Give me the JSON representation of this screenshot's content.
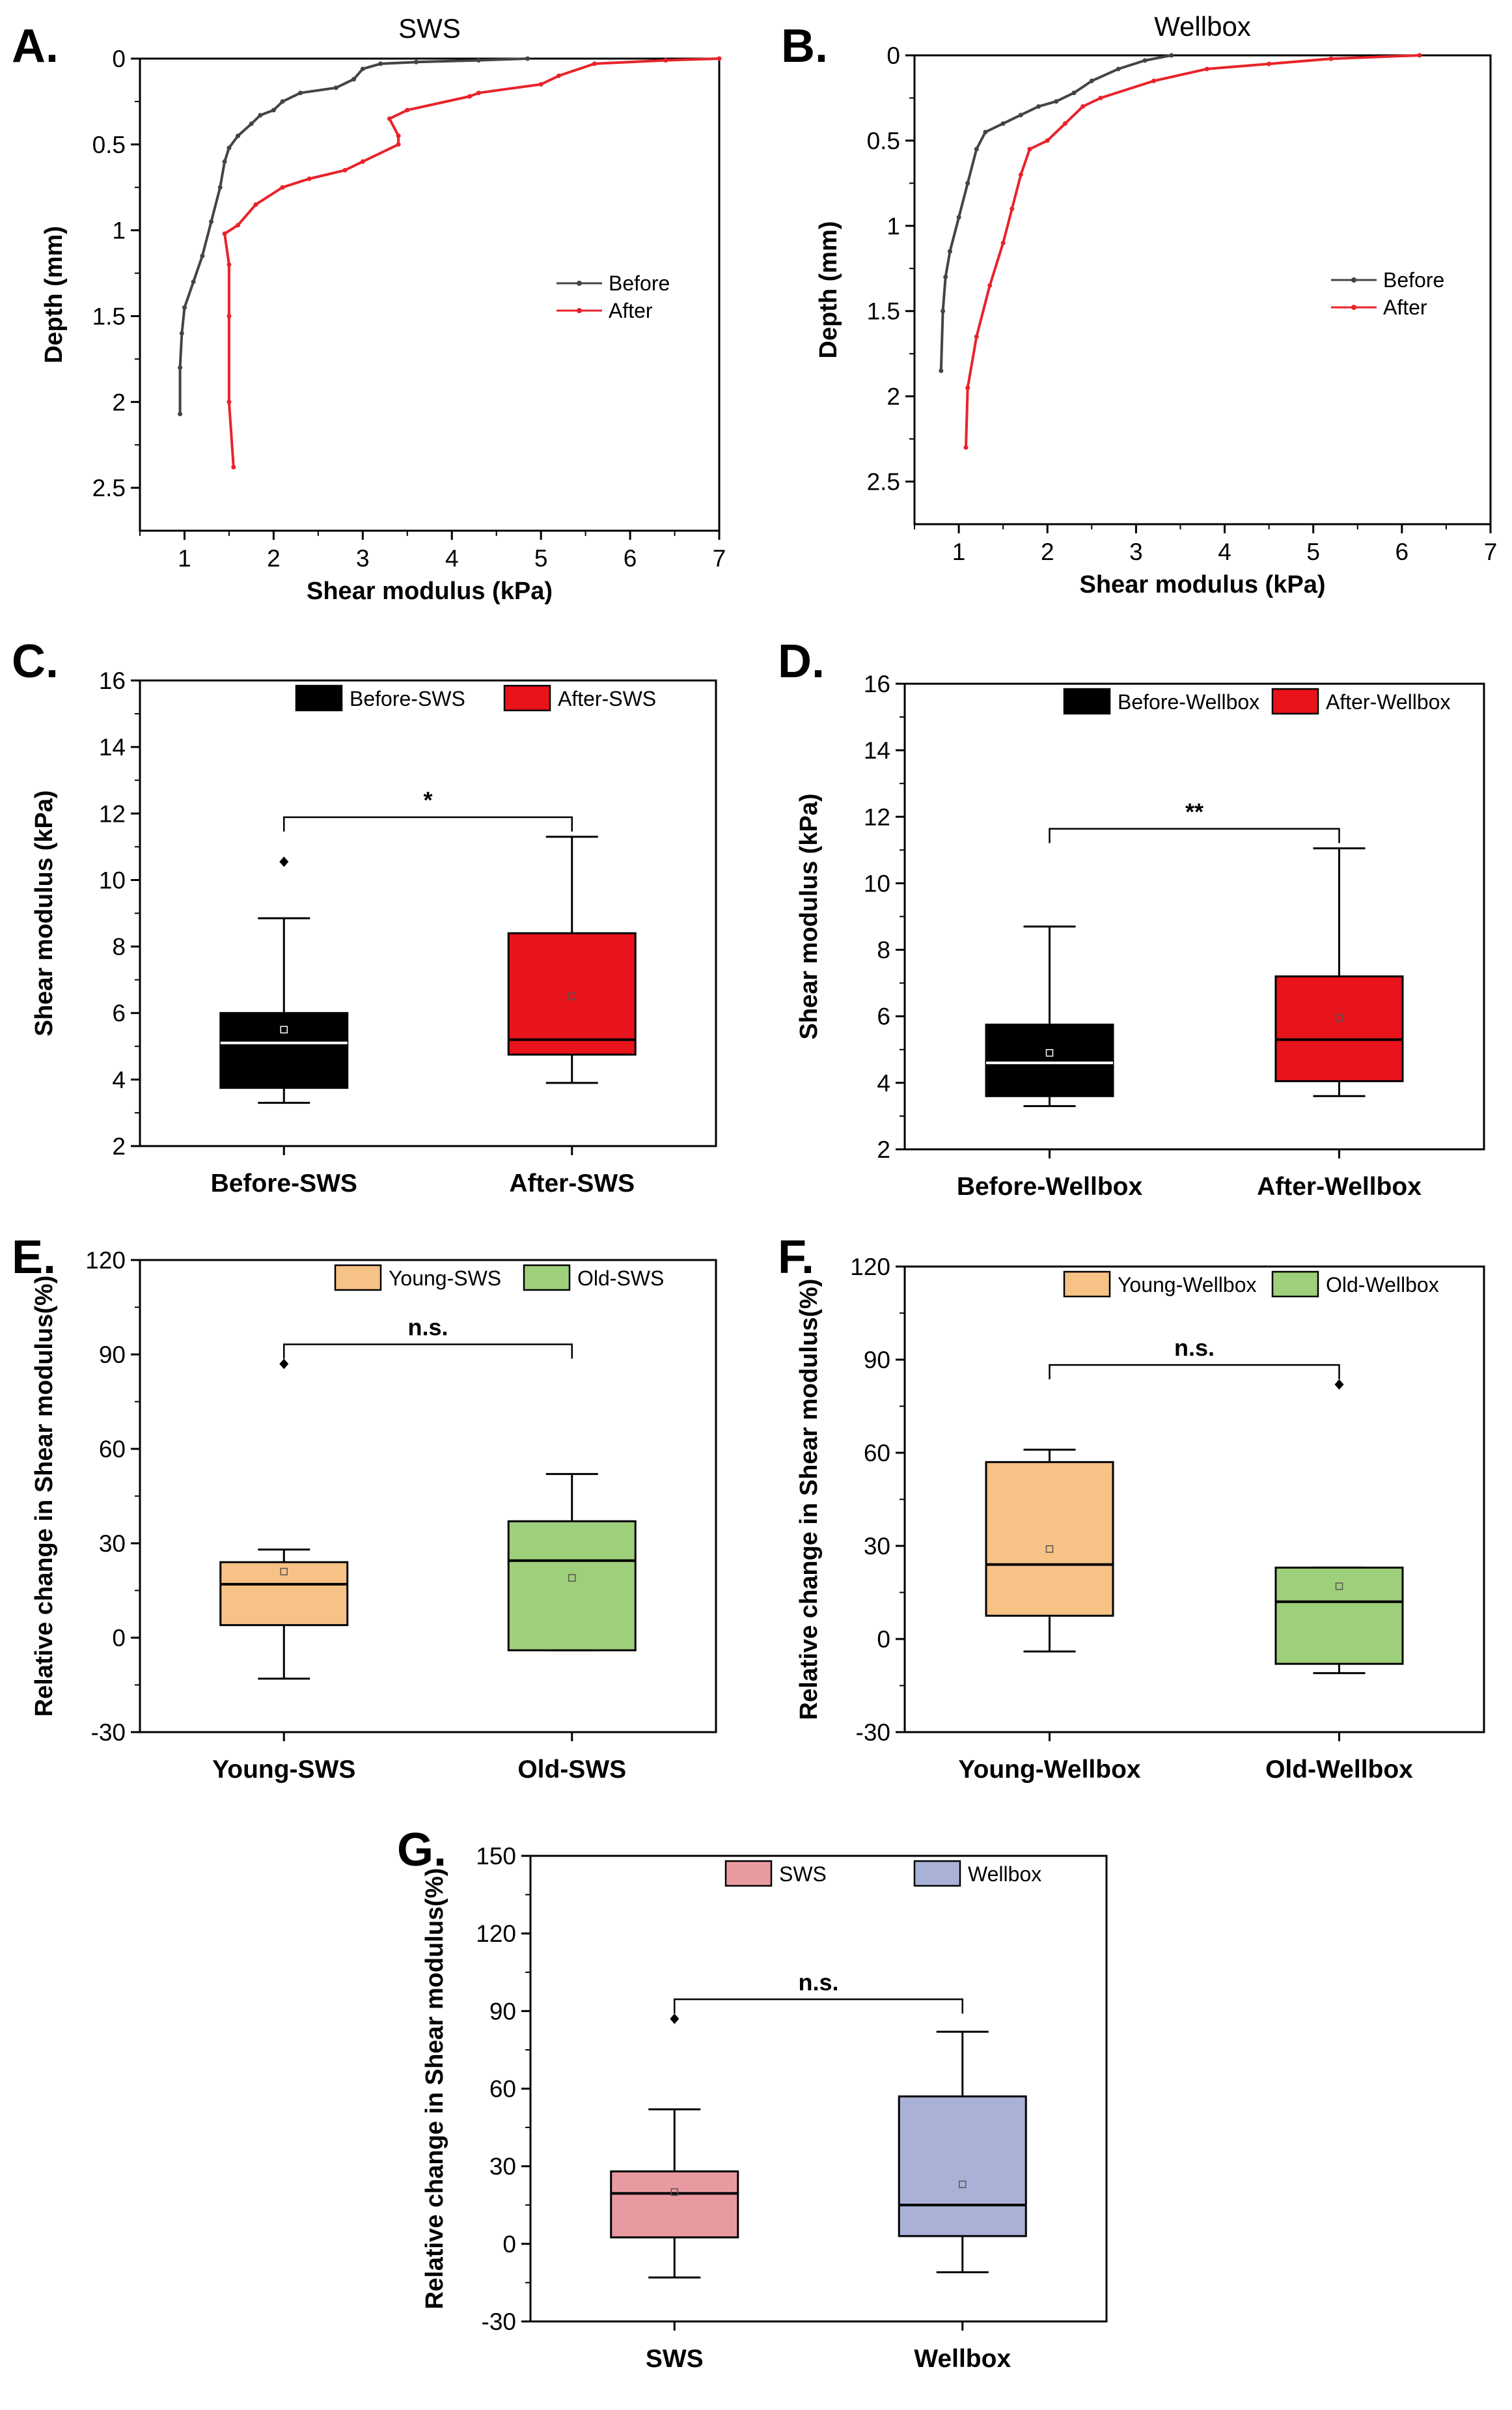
{
  "chart_data": [
    {
      "panel": "A.",
      "type": "line",
      "title": "SWS",
      "xlabel": "Shear modulus (kPa)",
      "ylabel": "Depth (mm)",
      "xlim": [
        0.5,
        7
      ],
      "ylim": [
        2.75,
        0
      ],
      "xticks": [
        1,
        2,
        3,
        4,
        5,
        6,
        7
      ],
      "yticks": [
        0.0,
        0.5,
        1.0,
        1.5,
        2.0,
        2.5
      ],
      "legend": [
        "Before",
        "After"
      ],
      "series": [
        {
          "name": "Before",
          "color": "#444444",
          "points": [
            [
              4.85,
              0.0
            ],
            [
              4.3,
              0.01
            ],
            [
              3.6,
              0.02
            ],
            [
              3.2,
              0.03
            ],
            [
              3.0,
              0.06
            ],
            [
              2.9,
              0.12
            ],
            [
              2.7,
              0.17
            ],
            [
              2.3,
              0.2
            ],
            [
              2.1,
              0.25
            ],
            [
              2.0,
              0.3
            ],
            [
              1.85,
              0.33
            ],
            [
              1.75,
              0.38
            ],
            [
              1.6,
              0.45
            ],
            [
              1.5,
              0.52
            ],
            [
              1.45,
              0.6
            ],
            [
              1.4,
              0.75
            ],
            [
              1.3,
              0.95
            ],
            [
              1.2,
              1.15
            ],
            [
              1.1,
              1.3
            ],
            [
              1.0,
              1.45
            ],
            [
              0.97,
              1.6
            ],
            [
              0.95,
              1.8
            ],
            [
              0.95,
              2.07
            ]
          ]
        },
        {
          "name": "After",
          "color": "#e8232a",
          "points": [
            [
              7.0,
              0.0
            ],
            [
              6.4,
              0.01
            ],
            [
              5.6,
              0.03
            ],
            [
              5.2,
              0.1
            ],
            [
              5.0,
              0.15
            ],
            [
              4.3,
              0.2
            ],
            [
              4.2,
              0.22
            ],
            [
              3.5,
              0.3
            ],
            [
              3.3,
              0.35
            ],
            [
              3.4,
              0.45
            ],
            [
              3.4,
              0.5
            ],
            [
              3.0,
              0.6
            ],
            [
              2.8,
              0.65
            ],
            [
              2.4,
              0.7
            ],
            [
              2.1,
              0.75
            ],
            [
              1.8,
              0.85
            ],
            [
              1.6,
              0.97
            ],
            [
              1.45,
              1.02
            ],
            [
              1.5,
              1.2
            ],
            [
              1.5,
              1.5
            ],
            [
              1.5,
              2.0
            ],
            [
              1.55,
              2.38
            ]
          ]
        }
      ]
    },
    {
      "panel": "B.",
      "type": "line",
      "title": "Wellbox",
      "xlabel": "Shear modulus (kPa)",
      "ylabel": "Depth (mm)",
      "xlim": [
        0.5,
        7
      ],
      "ylim": [
        2.75,
        0
      ],
      "xticks": [
        1,
        2,
        3,
        4,
        5,
        6,
        7
      ],
      "yticks": [
        0.0,
        0.5,
        1.0,
        1.5,
        2.0,
        2.5
      ],
      "legend": [
        "Before",
        "After"
      ],
      "series": [
        {
          "name": "Before",
          "color": "#444444",
          "points": [
            [
              3.4,
              0.0
            ],
            [
              3.1,
              0.03
            ],
            [
              2.8,
              0.08
            ],
            [
              2.5,
              0.15
            ],
            [
              2.3,
              0.22
            ],
            [
              2.1,
              0.27
            ],
            [
              1.9,
              0.3
            ],
            [
              1.7,
              0.35
            ],
            [
              1.5,
              0.4
            ],
            [
              1.3,
              0.45
            ],
            [
              1.2,
              0.55
            ],
            [
              1.1,
              0.75
            ],
            [
              1.0,
              0.95
            ],
            [
              0.9,
              1.15
            ],
            [
              0.85,
              1.3
            ],
            [
              0.82,
              1.5
            ],
            [
              0.8,
              1.85
            ]
          ]
        },
        {
          "name": "After",
          "color": "#e8232a",
          "points": [
            [
              6.2,
              0.0
            ],
            [
              5.2,
              0.02
            ],
            [
              4.5,
              0.05
            ],
            [
              3.8,
              0.08
            ],
            [
              3.2,
              0.15
            ],
            [
              2.6,
              0.25
            ],
            [
              2.4,
              0.3
            ],
            [
              2.2,
              0.4
            ],
            [
              2.0,
              0.5
            ],
            [
              1.8,
              0.55
            ],
            [
              1.7,
              0.7
            ],
            [
              1.6,
              0.9
            ],
            [
              1.5,
              1.1
            ],
            [
              1.35,
              1.35
            ],
            [
              1.2,
              1.65
            ],
            [
              1.1,
              1.95
            ],
            [
              1.08,
              2.3
            ]
          ]
        }
      ]
    },
    {
      "panel": "C.",
      "type": "box",
      "ylabel": "Shear modulus (kPa)",
      "ylim": [
        2,
        16
      ],
      "yticks": [
        2,
        4,
        6,
        8,
        10,
        12,
        14,
        16
      ],
      "categories": [
        "Before-SWS",
        "After-SWS"
      ],
      "legend": [
        "Before-SWS",
        "After-SWS"
      ],
      "significance": "*",
      "boxes": [
        {
          "name": "Before-SWS",
          "color": "#000000",
          "median_color": "#ffffff",
          "whisker_min": 3.3,
          "q1": 3.75,
          "median": 5.1,
          "q3": 6.0,
          "whisker_max": 8.85,
          "mean": 5.5,
          "outliers": [
            10.55
          ]
        },
        {
          "name": "After-SWS",
          "color": "#e8131b",
          "median_color": "#000000",
          "whisker_min": 3.9,
          "q1": 4.75,
          "median": 5.2,
          "q3": 8.4,
          "whisker_max": 11.3,
          "mean": 6.5,
          "outliers": []
        }
      ]
    },
    {
      "panel": "D.",
      "type": "box",
      "ylabel": "Shear modulus (kPa)",
      "ylim": [
        2,
        16
      ],
      "yticks": [
        2,
        4,
        6,
        8,
        10,
        12,
        14,
        16
      ],
      "categories": [
        "Before-Wellbox",
        "After-Wellbox"
      ],
      "legend": [
        "Before-Wellbox",
        "After-Wellbox"
      ],
      "significance": "**",
      "boxes": [
        {
          "name": "Before-Wellbox",
          "color": "#000000",
          "median_color": "#ffffff",
          "whisker_min": 3.3,
          "q1": 3.6,
          "median": 4.6,
          "q3": 5.75,
          "whisker_max": 8.7,
          "mean": 4.9,
          "outliers": []
        },
        {
          "name": "After-Wellbox",
          "color": "#e8131b",
          "median_color": "#000000",
          "whisker_min": 3.6,
          "q1": 4.05,
          "median": 5.3,
          "q3": 7.2,
          "whisker_max": 11.05,
          "mean": 5.95,
          "outliers": []
        }
      ]
    },
    {
      "panel": "E.",
      "type": "box",
      "ylabel": "Relative change in Shear modulus(%)",
      "ylim": [
        -30,
        120
      ],
      "yticks": [
        -30,
        0,
        30,
        60,
        90,
        120
      ],
      "categories": [
        "Young-SWS",
        "Old-SWS"
      ],
      "legend": [
        "Young-SWS",
        "Old-SWS"
      ],
      "significance": "n.s.",
      "boxes": [
        {
          "name": "Young-SWS",
          "color": "#f7c286",
          "median_color": "#000000",
          "whisker_min": -13,
          "q1": 4,
          "median": 17,
          "q3": 24,
          "whisker_max": 28,
          "mean": 21,
          "outliers": [
            87
          ]
        },
        {
          "name": "Old-SWS",
          "color": "#9ecf7a",
          "median_color": "#000000",
          "whisker_min": -4,
          "q1": -4,
          "median": 24.5,
          "q3": 37,
          "whisker_max": 52,
          "mean": 19,
          "outliers": []
        }
      ]
    },
    {
      "panel": "F.",
      "type": "box",
      "ylabel": "Relative change in Shear modulus(%)",
      "ylim": [
        -30,
        120
      ],
      "yticks": [
        -30,
        0,
        30,
        60,
        90,
        120
      ],
      "categories": [
        "Young-Wellbox",
        "Old-Wellbox"
      ],
      "legend": [
        "Young-Wellbox",
        "Old-Wellbox"
      ],
      "significance": "n.s.",
      "boxes": [
        {
          "name": "Young-Wellbox",
          "color": "#f7c286",
          "median_color": "#000000",
          "whisker_min": -4,
          "q1": 7.5,
          "median": 24,
          "q3": 57,
          "whisker_max": 61,
          "mean": 29,
          "outliers": []
        },
        {
          "name": "Old-Wellbox",
          "color": "#9ecf7a",
          "median_color": "#000000",
          "whisker_min": -11,
          "q1": -8,
          "median": 12,
          "q3": 23,
          "whisker_max": 23,
          "mean": 17,
          "outliers": [
            82
          ]
        }
      ]
    },
    {
      "panel": "G.",
      "type": "box",
      "ylabel": "Relative change in Shear modulus(%)",
      "ylim": [
        -30,
        150
      ],
      "yticks": [
        -30,
        0,
        30,
        60,
        90,
        120,
        150
      ],
      "categories": [
        "SWS",
        "Wellbox"
      ],
      "legend": [
        "SWS",
        "Wellbox"
      ],
      "significance": "n.s.",
      "boxes": [
        {
          "name": "SWS",
          "color": "#e99aa0",
          "median_color": "#000000",
          "whisker_min": -13,
          "q1": 2.5,
          "median": 19.5,
          "q3": 28,
          "whisker_max": 52,
          "mean": 20,
          "outliers": [
            87
          ]
        },
        {
          "name": "Wellbox",
          "color": "#a9b2d6",
          "median_color": "#000000",
          "whisker_min": -11,
          "q1": 3,
          "median": 15,
          "q3": 57,
          "whisker_max": 82,
          "mean": 23,
          "outliers": []
        }
      ]
    }
  ]
}
